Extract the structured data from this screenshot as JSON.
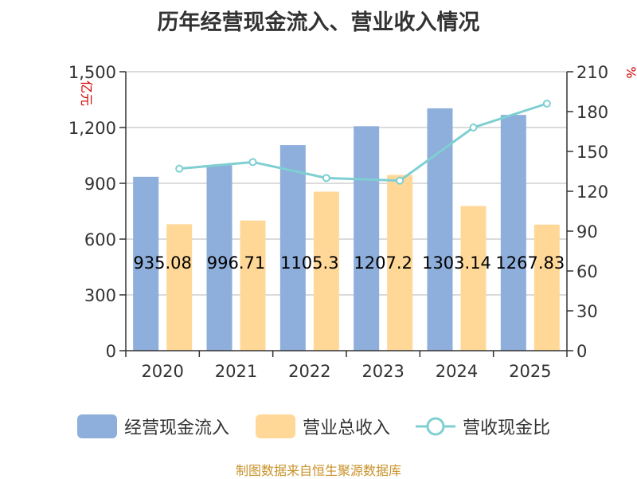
{
  "chart_data": {
    "type": "bar",
    "title": "历年经营现金流入、营业收入情况",
    "categories": [
      "2020",
      "2021",
      "2022",
      "2023",
      "2024",
      "2025"
    ],
    "series": [
      {
        "name": "经营现金流入",
        "type": "bar",
        "axis": "left",
        "color": "#8eaedb",
        "values": [
          935.08,
          996.71,
          1105.3,
          1207.2,
          1303.14,
          1267.83
        ],
        "labels": [
          "935.08",
          "996.71",
          "1105.3",
          "1207.2",
          "1303.14",
          "1267.83"
        ]
      },
      {
        "name": "营业总收入",
        "type": "bar",
        "axis": "left",
        "color": "#ffd898",
        "values": [
          680,
          700,
          855,
          945,
          778,
          678
        ]
      },
      {
        "name": "营收现金比",
        "type": "line",
        "axis": "right",
        "color": "#7fcfd2",
        "values": [
          137,
          142,
          130,
          128,
          168,
          186
        ]
      }
    ],
    "left_axis": {
      "label": "亿元",
      "ylim": [
        0,
        1500
      ],
      "ticks": [
        "0",
        "300",
        "600",
        "900",
        "1,200",
        "1,500"
      ]
    },
    "right_axis": {
      "label": "%",
      "ylim": [
        0,
        210
      ],
      "ticks": [
        "0",
        "30",
        "60",
        "90",
        "120",
        "150",
        "180",
        "210"
      ]
    },
    "grid": true,
    "legend_position": "bottom"
  },
  "legend": {
    "items": [
      {
        "label": "经营现金流入",
        "kind": "bar",
        "color": "#8eaedb"
      },
      {
        "label": "营业总收入",
        "kind": "bar",
        "color": "#ffd898"
      },
      {
        "label": "营收现金比",
        "kind": "line",
        "color": "#7fcfd2"
      }
    ]
  },
  "source": "制图数据来自恒生聚源数据库"
}
